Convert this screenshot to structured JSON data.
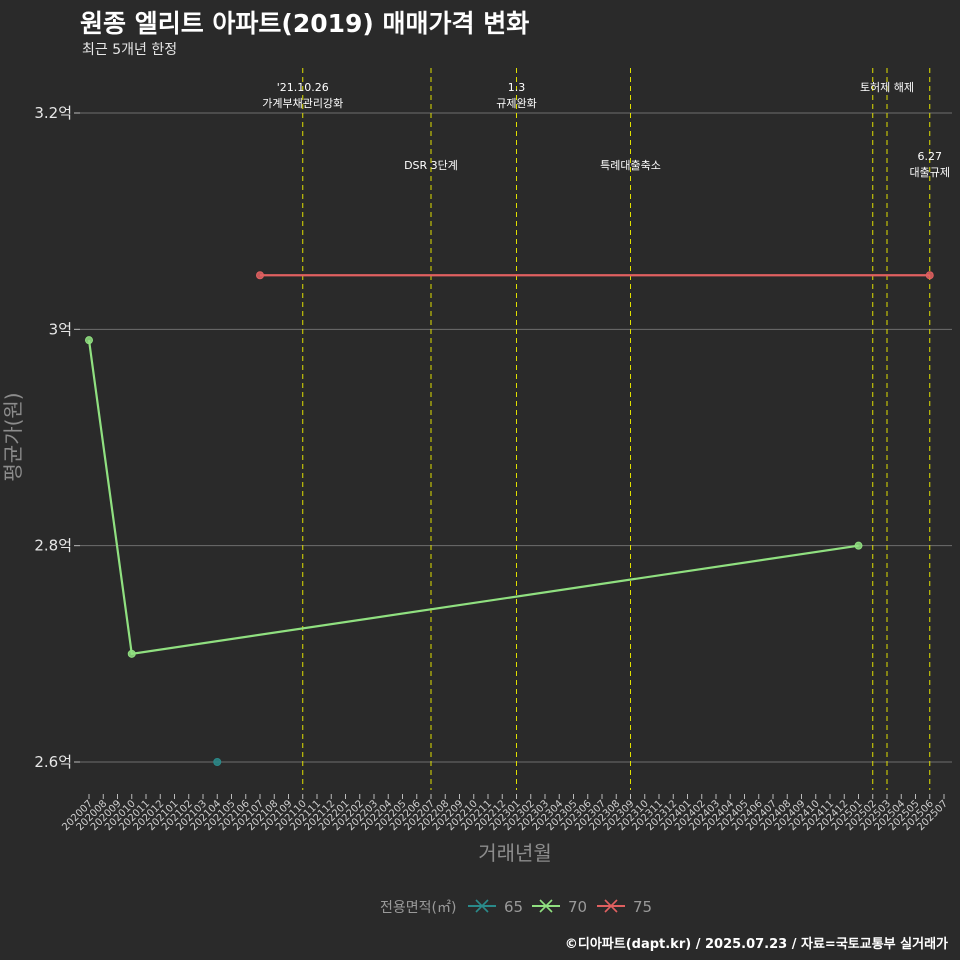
{
  "header": {
    "title": "원종 엘리트 아파트(2019) 매매가격 변화",
    "subtitle": "최근 5개년 한정"
  },
  "footer": {
    "caption": "©디아파트(dapt.kr) / 2025.07.23 / 자료=국토교통부 실거래가"
  },
  "colors": {
    "background": "#2a2a2a",
    "grid": "#6e6e6e",
    "event_line": "#e0e000",
    "series_65": "#2a8a8a",
    "series_70": "#90e080",
    "series_75": "#e06060"
  },
  "chart_data": {
    "type": "line",
    "title": "원종 엘리트 아파트(2019) 매매가격 변화",
    "subtitle": "최근 5개년 한정",
    "xlabel": "거래년월",
    "ylabel": "평균가(원)",
    "categories": [
      "202007",
      "202008",
      "202009",
      "202010",
      "202011",
      "202012",
      "202101",
      "202102",
      "202103",
      "202104",
      "202105",
      "202106",
      "202107",
      "202108",
      "202109",
      "202110",
      "202111",
      "202112",
      "202201",
      "202202",
      "202203",
      "202204",
      "202205",
      "202206",
      "202207",
      "202208",
      "202209",
      "202210",
      "202211",
      "202212",
      "202301",
      "202302",
      "202303",
      "202304",
      "202305",
      "202306",
      "202307",
      "202308",
      "202309",
      "202310",
      "202311",
      "202312",
      "202401",
      "202402",
      "202403",
      "202404",
      "202405",
      "202406",
      "202407",
      "202408",
      "202409",
      "202410",
      "202411",
      "202412",
      "202501",
      "202502",
      "202503",
      "202504",
      "202505",
      "202506",
      "202507"
    ],
    "y_ticks": [
      {
        "value": 2.6,
        "label": "2.6억"
      },
      {
        "value": 2.8,
        "label": "2.8억"
      },
      {
        "value": 3.0,
        "label": "3억"
      },
      {
        "value": 3.2,
        "label": "3.2억"
      }
    ],
    "ylim": [
      2.57,
      3.25
    ],
    "grid": true,
    "legend": {
      "title": "전용면적(㎡)",
      "position": "bottom"
    },
    "series": [
      {
        "name": "65",
        "color": "#2a8a8a",
        "points": [
          {
            "x": "202104",
            "y": 2.6
          }
        ]
      },
      {
        "name": "70",
        "color": "#90e080",
        "points": [
          {
            "x": "202007",
            "y": 2.99
          },
          {
            "x": "202010",
            "y": 2.7
          },
          {
            "x": "202501",
            "y": 2.8
          }
        ]
      },
      {
        "name": "75",
        "color": "#e06060",
        "points": [
          {
            "x": "202107",
            "y": 3.05
          },
          {
            "x": "202506",
            "y": 3.05
          }
        ]
      }
    ],
    "events": [
      {
        "x": "202110",
        "lines": [
          "'21.10.26",
          "가계부채관리강화"
        ],
        "row": 0
      },
      {
        "x": "202207",
        "lines": [
          "DSR 3단계"
        ],
        "row": 1
      },
      {
        "x": "202301",
        "lines": [
          "1.3",
          "규제완화"
        ],
        "row": 0
      },
      {
        "x": "202309",
        "lines": [
          "특례대출축소"
        ],
        "row": 1
      },
      {
        "x": "202502",
        "lines": [],
        "row": 0
      },
      {
        "x": "202503",
        "lines": [
          "토허제 해제"
        ],
        "row": 0
      },
      {
        "x": "202506",
        "lines": [
          "6.27",
          "대출규제"
        ],
        "row": 2
      }
    ]
  }
}
